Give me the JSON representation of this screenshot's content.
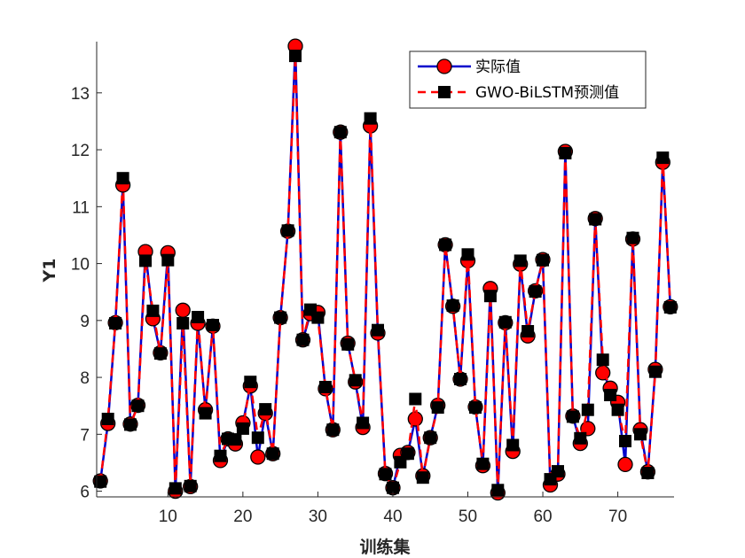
{
  "chart_data": {
    "type": "line",
    "xlabel": "训练集",
    "ylabel": "Y1",
    "xlim": [
      0.5,
      77.5
    ],
    "ylim": [
      5.9,
      13.9
    ],
    "x_ticks": [
      10,
      20,
      30,
      40,
      50,
      60,
      70
    ],
    "y_ticks": [
      6,
      7,
      8,
      9,
      10,
      11,
      12,
      13
    ],
    "legend_position": "top-right",
    "series": [
      {
        "name": "实际值",
        "color": "#0000CC",
        "marker_color": "#FF0000",
        "line_style": "solid",
        "marker": "circle",
        "values": [
          6.18,
          7.19,
          8.96,
          11.38,
          7.18,
          7.51,
          10.21,
          9.03,
          8.43,
          10.19,
          6.0,
          9.18,
          6.08,
          8.95,
          7.43,
          8.9,
          6.54,
          6.92,
          6.83,
          7.2,
          7.85,
          6.6,
          7.37,
          6.66,
          9.05,
          10.57,
          13.82,
          8.66,
          9.12,
          9.14,
          7.8,
          7.08,
          12.31,
          8.6,
          7.92,
          7.12,
          12.42,
          8.78,
          6.31,
          6.06,
          6.63,
          6.68,
          7.27,
          6.27,
          6.94,
          7.51,
          10.33,
          9.25,
          7.97,
          10.05,
          7.48,
          6.45,
          9.56,
          5.97,
          8.96,
          6.7,
          9.99,
          8.73,
          9.52,
          10.07,
          6.11,
          6.3,
          11.97,
          7.32,
          6.84,
          7.1,
          10.79,
          8.08,
          7.81,
          7.56,
          6.47,
          10.43,
          7.08,
          6.34,
          8.14,
          11.78,
          9.24
        ]
      },
      {
        "name": "GWO-BiLSTM预测值",
        "color": "#FF0000",
        "marker_color": "#000000",
        "line_style": "dashed",
        "marker": "square",
        "values": [
          6.17,
          7.27,
          8.95,
          11.5,
          7.17,
          7.5,
          10.05,
          9.17,
          8.42,
          10.06,
          6.05,
          8.95,
          6.09,
          9.06,
          7.37,
          8.92,
          6.62,
          6.92,
          6.91,
          7.1,
          7.92,
          6.94,
          7.44,
          6.66,
          9.05,
          10.58,
          13.65,
          8.66,
          9.19,
          9.05,
          7.83,
          7.08,
          12.31,
          8.58,
          7.95,
          7.2,
          12.55,
          8.83,
          6.3,
          6.06,
          6.51,
          6.66,
          7.62,
          6.24,
          6.94,
          7.47,
          10.33,
          9.26,
          7.97,
          10.16,
          7.47,
          6.48,
          9.43,
          6.02,
          8.97,
          6.81,
          10.05,
          8.81,
          9.51,
          10.06,
          6.21,
          6.35,
          11.94,
          7.31,
          6.93,
          7.43,
          10.78,
          8.31,
          7.69,
          7.43,
          6.88,
          10.45,
          7.0,
          6.32,
          8.1,
          11.86,
          9.23
        ]
      }
    ]
  }
}
